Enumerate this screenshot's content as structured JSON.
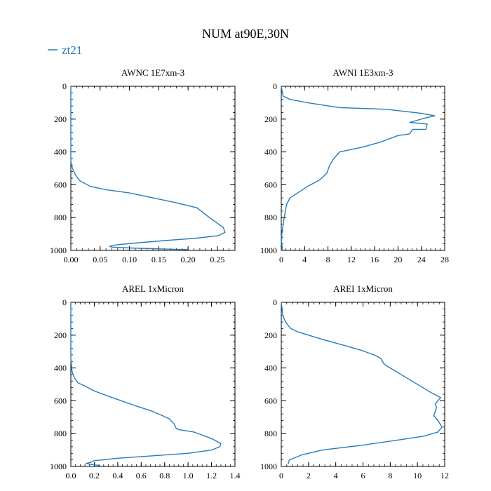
{
  "figure": {
    "title": "NUM at90E,30N",
    "legend": {
      "label": "zt21",
      "color": "#2a7ab8"
    }
  },
  "chart_data": [
    {
      "type": "line",
      "title": "AWNC  1E7xm-3",
      "xlim": [
        0,
        0.28
      ],
      "ylim": [
        1000,
        0
      ],
      "xticks": [
        "0.00",
        "0.05",
        "0.10",
        "0.15",
        "0.20",
        "0.25"
      ],
      "xtick_values": [
        0,
        0.05,
        0.1,
        0.15,
        0.2,
        0.25
      ],
      "yticks": [
        "0",
        "200",
        "400",
        "600",
        "800",
        "1000"
      ],
      "ytick_values": [
        0,
        200,
        400,
        600,
        800,
        1000
      ],
      "series": [
        {
          "name": "zt21",
          "x": [
            0,
            0,
            0.001,
            0.004,
            0.008,
            0.015,
            0.033,
            0.06,
            0.1,
            0.14,
            0.18,
            0.215,
            0.233,
            0.248,
            0.26,
            0.263,
            0.252,
            0.215,
            0.16,
            0.11,
            0.08,
            0.066,
            0.07,
            0.1,
            0.16,
            0.2
          ],
          "y": [
            0,
            450,
            480,
            510,
            540,
            575,
            610,
            630,
            650,
            680,
            710,
            740,
            790,
            830,
            860,
            890,
            910,
            925,
            940,
            955,
            965,
            975,
            980,
            985,
            992,
            995
          ]
        }
      ]
    },
    {
      "type": "line",
      "title": "AWNI  1E3xm-3",
      "xlim": [
        0,
        28
      ],
      "ylim": [
        1000,
        0
      ],
      "xticks": [
        "0",
        "4",
        "8",
        "12",
        "16",
        "20",
        "24",
        "28"
      ],
      "xtick_values": [
        0,
        4,
        8,
        12,
        16,
        20,
        24,
        28
      ],
      "yticks": [
        "0",
        "200",
        "400",
        "600",
        "800",
        "1000"
      ],
      "ytick_values": [
        0,
        200,
        400,
        600,
        800,
        1000
      ],
      "series": [
        {
          "name": "zt21",
          "x": [
            0,
            0.3,
            1.5,
            4.5,
            10,
            18,
            24,
            26.3,
            24.5,
            22,
            25,
            24.8,
            22.5,
            22,
            20,
            17,
            14,
            10,
            9,
            8.3,
            7.8,
            6.6,
            4.5,
            3,
            1.5,
            0.9,
            0.5,
            0.3,
            0.1,
            0.05,
            0.2,
            0.05
          ],
          "y": [
            0,
            60,
            80,
            100,
            130,
            140,
            165,
            180,
            195,
            220,
            230,
            262,
            263,
            290,
            300,
            340,
            370,
            400,
            440,
            480,
            530,
            570,
            610,
            645,
            680,
            720,
            800,
            850,
            900,
            950,
            995,
            1000
          ]
        }
      ]
    },
    {
      "type": "line",
      "title": "AREL  1xMicron",
      "xlim": [
        0,
        1.4
      ],
      "ylim": [
        1000,
        0
      ],
      "xticks": [
        "0.0",
        "0.2",
        "0.4",
        "0.6",
        "0.8",
        "1.0",
        "1.2",
        "1.4"
      ],
      "xtick_values": [
        0,
        0.2,
        0.4,
        0.6,
        0.8,
        1.0,
        1.2,
        1.4
      ],
      "yticks": [
        "0",
        "200",
        "400",
        "600",
        "800",
        "1000"
      ],
      "ytick_values": [
        0,
        200,
        400,
        600,
        800,
        1000
      ],
      "series": [
        {
          "name": "zt21",
          "x": [
            0,
            0,
            0.005,
            0.01,
            0.03,
            0.06,
            0.12,
            0.2,
            0.35,
            0.55,
            0.68,
            0.78,
            0.84,
            0.88,
            0.9,
            0.92,
            1.05,
            1.2,
            1.28,
            1.27,
            1.2,
            1.0,
            0.7,
            0.4,
            0.2,
            0.17,
            0.13,
            0.2,
            0.25
          ],
          "y": [
            0,
            340,
            380,
            420,
            460,
            490,
            510,
            540,
            580,
            630,
            660,
            690,
            710,
            740,
            770,
            775,
            790,
            830,
            860,
            880,
            900,
            920,
            935,
            950,
            965,
            975,
            982,
            990,
            995
          ]
        }
      ]
    },
    {
      "type": "line",
      "title": "AREI  1xMicron",
      "xlim": [
        0,
        12
      ],
      "ylim": [
        1000,
        0
      ],
      "xticks": [
        "0",
        "2",
        "4",
        "6",
        "8",
        "10",
        "12"
      ],
      "xtick_values": [
        0,
        2,
        4,
        6,
        8,
        10,
        12
      ],
      "yticks": [
        "0",
        "200",
        "400",
        "600",
        "800",
        "1000"
      ],
      "ytick_values": [
        0,
        200,
        400,
        600,
        800,
        1000
      ],
      "series": [
        {
          "name": "zt21",
          "x": [
            0,
            0.1,
            0.2,
            0.4,
            0.7,
            1.2,
            2.0,
            3.2,
            4.5,
            5.8,
            6.8,
            7.3,
            7.5,
            7.6,
            8.0,
            9.0,
            10.2,
            11.0,
            11.7,
            11.3,
            11.4,
            11.2,
            11.5,
            11.8,
            11.5,
            10.5,
            8.5,
            6.0,
            3.0,
            1.5,
            0.6,
            0.5
          ],
          "y": [
            0,
            70,
            100,
            130,
            160,
            180,
            200,
            230,
            260,
            290,
            320,
            340,
            370,
            380,
            400,
            450,
            510,
            550,
            580,
            620,
            640,
            690,
            720,
            760,
            790,
            815,
            840,
            870,
            900,
            930,
            960,
            985
          ]
        }
      ]
    }
  ]
}
